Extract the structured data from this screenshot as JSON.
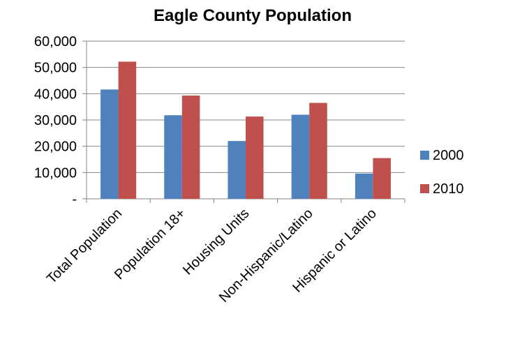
{
  "chart_data": {
    "type": "bar",
    "title": "Eagle County Population",
    "xlabel": "",
    "ylabel": "",
    "categories": [
      "Total Population",
      "Population 18+",
      "Housing Units",
      "Non-Hispanic/Latino",
      "Hispanic or Latino"
    ],
    "series": [
      {
        "name": "2000",
        "color": "#4f81bd",
        "values": [
          41600,
          31800,
          22000,
          32000,
          9600
        ]
      },
      {
        "name": "2010",
        "color": "#c0504d",
        "values": [
          52200,
          39300,
          31300,
          36500,
          15500
        ]
      }
    ],
    "ylim": [
      0,
      60000
    ],
    "yticks": [
      0,
      10000,
      20000,
      30000,
      40000,
      50000,
      60000
    ],
    "ytick_labels": [
      "-",
      "10,000",
      "20,000",
      "30,000",
      "40,000",
      "50,000",
      "60,000"
    ],
    "grid": true,
    "legend_position": "right"
  }
}
